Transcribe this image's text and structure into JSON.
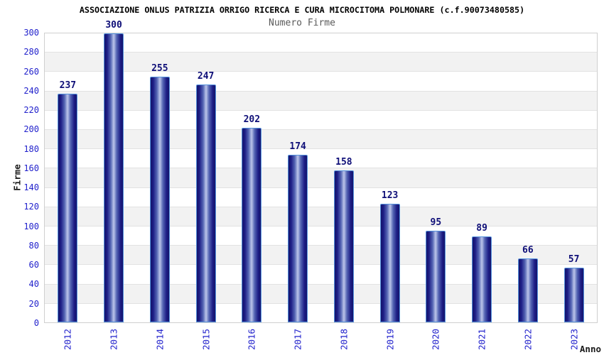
{
  "header": {
    "title": "ASSOCIAZIONE ONLUS PATRIZIA ORRIGO RICERCA E CURA MICROCITOMA POLMONARE (c.f.90073480585)",
    "subtitle": "Numero Firme"
  },
  "chart_data": {
    "type": "bar",
    "title": "Numero Firme",
    "categories": [
      "2012",
      "2013",
      "2014",
      "2015",
      "2016",
      "2017",
      "2018",
      "2019",
      "2020",
      "2021",
      "2022",
      "2023"
    ],
    "values": [
      237,
      300,
      255,
      247,
      202,
      174,
      158,
      123,
      95,
      89,
      66,
      57
    ],
    "xlabel": "Anno",
    "ylabel": "Firme",
    "ylim": [
      0,
      300
    ],
    "ytick_step": 20,
    "grid": "horizontal-bands-alternating",
    "legend_position": "none"
  },
  "colors": {
    "bar_gradient_edge": "#14146b",
    "bar_gradient_center": "#bcc6ea",
    "bar_border": "#5592dd",
    "axis_tick_blue": "#2222cc",
    "value_label_navy": "#0f0f78",
    "band_gray": "#f2f2f2",
    "band_white": "#ffffff",
    "gridline": "#e2e2e2",
    "plot_border": "#cfcfcf",
    "title_black": "#000000",
    "subtitle_gray": "#5a5a5a"
  }
}
